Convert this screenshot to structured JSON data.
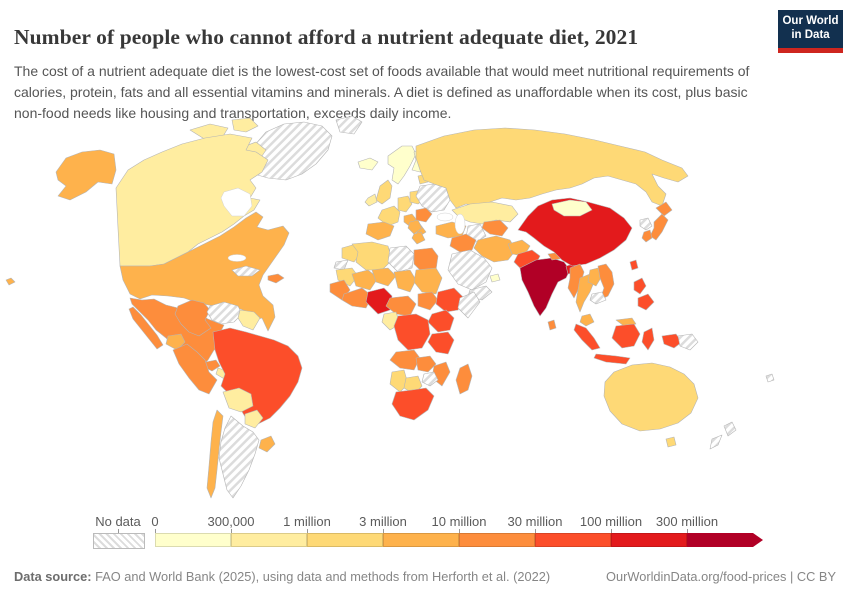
{
  "header": {
    "title": "Number of people who cannot afford a nutrient adequate diet, 2021",
    "subtitle": "The cost of a nutrient adequate diet is the lowest-cost set of foods available that would meet nutritional requirements of calories, protein, fats and all essential vitamins and minerals. A diet is defined as unaffordable when its cost, plus basic non-food needs like housing and transportation, exceeds daily income.",
    "logo": {
      "line1": "Our World",
      "line2": "in Data",
      "bg_color": "#12304F",
      "accent_color": "#CE261F"
    }
  },
  "legend": {
    "no_data_label": "No data",
    "stops": [
      {
        "label": "0",
        "color": "#FFFFCC"
      },
      {
        "label": "300,000",
        "color": "#FFEDA0"
      },
      {
        "label": "1 million",
        "color": "#FED976"
      },
      {
        "label": "3 million",
        "color": "#FEB24C"
      },
      {
        "label": "10 million",
        "color": "#FD8D3C"
      },
      {
        "label": "30 million",
        "color": "#FC4E2A"
      },
      {
        "label": "100 million",
        "color": "#E31A1C"
      },
      {
        "label": "300 million",
        "color": "#B10026"
      }
    ]
  },
  "footer": {
    "source_label": "Data source:",
    "source_text": " FAO and World Bank (2025), using data and methods from Herforth et al. (2022)",
    "link_text": "OurWorldinData.org/food-prices",
    "separator": " | ",
    "license_text": "CC BY"
  },
  "chart_data": {
    "type": "choropleth_map",
    "title": "Number of people who cannot afford a nutrient adequate diet",
    "year": "2021",
    "unit": "people",
    "bins": [
      "0–300,000",
      "300,000–1 million",
      "1–3 million",
      "3–10 million",
      "10–30 million",
      "30–100 million",
      "100–300 million",
      "300 million+",
      "No data"
    ],
    "no_data_style": "hatched",
    "regions": [
      {
        "id": "greenland",
        "name": "Greenland",
        "bin": "No data",
        "color": null
      },
      {
        "id": "svalbard",
        "name": "Svalbard",
        "bin": "No data",
        "color": null
      },
      {
        "id": "canada",
        "name": "Canada",
        "bin": "300,000–1 million",
        "color": "#FFEDA0"
      },
      {
        "id": "united-states",
        "name": "United States",
        "bin": "3–10 million",
        "color": "#FEB24C"
      },
      {
        "id": "hawaii",
        "name": "Hawaii (US)",
        "bin": "3–10 million",
        "color": "#FEB24C"
      },
      {
        "id": "mexico",
        "name": "Mexico",
        "bin": "10–30 million",
        "color": "#FD8D3C"
      },
      {
        "id": "guatemala",
        "name": "Guatemala",
        "bin": "10–30 million",
        "color": "#FD8D3C"
      },
      {
        "id": "central-america",
        "name": "Honduras & Nicaragua",
        "bin": "300,000–1 million",
        "color": "#FFEDA0"
      },
      {
        "id": "panama",
        "name": "Costa Rica & Panama",
        "bin": "10–30 million",
        "color": "#FD8D3C"
      },
      {
        "id": "cuba",
        "name": "Cuba",
        "bin": "No data",
        "color": null
      },
      {
        "id": "hispaniola",
        "name": "Haiti & Dominican Republic",
        "bin": "10–30 million",
        "color": "#FD8D3C"
      },
      {
        "id": "colombia",
        "name": "Colombia",
        "bin": "10–30 million",
        "color": "#FD8D3C"
      },
      {
        "id": "venezuela",
        "name": "Venezuela",
        "bin": "No data",
        "color": null
      },
      {
        "id": "guyanas",
        "name": "Guyana & Suriname",
        "bin": "300,000–1 million",
        "color": "#FFEDA0"
      },
      {
        "id": "ecuador",
        "name": "Ecuador",
        "bin": "3–10 million",
        "color": "#FEB24C"
      },
      {
        "id": "peru",
        "name": "Peru",
        "bin": "10–30 million",
        "color": "#FD8D3C"
      },
      {
        "id": "brazil",
        "name": "Brazil",
        "bin": "30–100 million",
        "color": "#FC4E2A"
      },
      {
        "id": "bolivia",
        "name": "Bolivia",
        "bin": "300,000–1 million",
        "color": "#FFEDA0"
      },
      {
        "id": "paraguay",
        "name": "Paraguay",
        "bin": "300,000–1 million",
        "color": "#FFEDA0"
      },
      {
        "id": "uruguay",
        "name": "Uruguay",
        "bin": "3–10 million",
        "color": "#FEB24C"
      },
      {
        "id": "chile",
        "name": "Chile",
        "bin": "3–10 million",
        "color": "#FEB24C"
      },
      {
        "id": "argentina",
        "name": "Argentina",
        "bin": "No data",
        "color": null
      },
      {
        "id": "iceland",
        "name": "Iceland",
        "bin": "0–300,000",
        "color": "#FFFFCC"
      },
      {
        "id": "uk",
        "name": "United Kingdom",
        "bin": "1–3 million",
        "color": "#FED976"
      },
      {
        "id": "ireland",
        "name": "Ireland",
        "bin": "300,000–1 million",
        "color": "#FFEDA0"
      },
      {
        "id": "norway-sweden",
        "name": "Norway & Sweden",
        "bin": "0–300,000",
        "color": "#FFFFCC"
      },
      {
        "id": "finland",
        "name": "Finland",
        "bin": "0–300,000",
        "color": "#FFFFCC"
      },
      {
        "id": "baltics",
        "name": "Baltic states",
        "bin": "1–3 million",
        "color": "#FED976"
      },
      {
        "id": "france",
        "name": "France",
        "bin": "1–3 million",
        "color": "#FED976"
      },
      {
        "id": "spain",
        "name": "Spain & Portugal",
        "bin": "3–10 million",
        "color": "#FEB24C"
      },
      {
        "id": "germany",
        "name": "Germany",
        "bin": "1–3 million",
        "color": "#FED976"
      },
      {
        "id": "italy",
        "name": "Italy",
        "bin": "3–10 million",
        "color": "#FEB24C"
      },
      {
        "id": "poland",
        "name": "Poland",
        "bin": "1–3 million",
        "color": "#FED976"
      },
      {
        "id": "ukraine",
        "name": "Ukraine & Belarus",
        "bin": "No data",
        "color": null
      },
      {
        "id": "romania",
        "name": "Romania",
        "bin": "10–30 million",
        "color": "#FD8D3C"
      },
      {
        "id": "balkans",
        "name": "Balkans",
        "bin": "3–10 million",
        "color": "#FEB24C"
      },
      {
        "id": "greece",
        "name": "Greece",
        "bin": "3–10 million",
        "color": "#FEB24C"
      },
      {
        "id": "turkey",
        "name": "Turkey",
        "bin": "3–10 million",
        "color": "#FEB24C"
      },
      {
        "id": "russia",
        "name": "Russia",
        "bin": "1–3 million",
        "color": "#FED976"
      },
      {
        "id": "kazakhstan",
        "name": "Kazakhstan",
        "bin": "300,000–1 million",
        "color": "#FFEDA0"
      },
      {
        "id": "uzbekistan",
        "name": "Uzbekistan",
        "bin": "10–30 million",
        "color": "#FD8D3C"
      },
      {
        "id": "turkmenistan",
        "name": "Turkmenistan",
        "bin": "No data",
        "color": null
      },
      {
        "id": "syria-iraq",
        "name": "Syria & Iraq",
        "bin": "10–30 million",
        "color": "#FD8D3C"
      },
      {
        "id": "iran",
        "name": "Iran",
        "bin": "3–10 million",
        "color": "#FEB24C"
      },
      {
        "id": "saudi-arabia",
        "name": "Saudi Arabia",
        "bin": "No data",
        "color": null
      },
      {
        "id": "yemen",
        "name": "Yemen",
        "bin": "No data",
        "color": null
      },
      {
        "id": "uae",
        "name": "United Arab Emirates",
        "bin": "0–300,000",
        "color": "#FFFFCC"
      },
      {
        "id": "afghanistan",
        "name": "Afghanistan",
        "bin": "3–10 million",
        "color": "#FEB24C"
      },
      {
        "id": "pakistan",
        "name": "Pakistan",
        "bin": "30–100 million",
        "color": "#FC4E2A"
      },
      {
        "id": "india",
        "name": "India",
        "bin": "300 million+",
        "color": "#B10026"
      },
      {
        "id": "nepal",
        "name": "Nepal",
        "bin": "10–30 million",
        "color": "#FD8D3C"
      },
      {
        "id": "bangladesh",
        "name": "Bangladesh",
        "bin": "100–300 million",
        "color": "#E31A1C"
      },
      {
        "id": "sri-lanka",
        "name": "Sri Lanka",
        "bin": "10–30 million",
        "color": "#FD8D3C"
      },
      {
        "id": "china",
        "name": "China",
        "bin": "100–300 million",
        "color": "#E31A1C"
      },
      {
        "id": "mongolia",
        "name": "Mongolia",
        "bin": "0–300,000",
        "color": "#FFFFCC"
      },
      {
        "id": "myanmar",
        "name": "Myanmar",
        "bin": "10–30 million",
        "color": "#FD8D3C"
      },
      {
        "id": "thailand",
        "name": "Thailand",
        "bin": "3–10 million",
        "color": "#FEB24C"
      },
      {
        "id": "laos",
        "name": "Laos",
        "bin": "3–10 million",
        "color": "#FEB24C"
      },
      {
        "id": "vietnam",
        "name": "Vietnam",
        "bin": "10–30 million",
        "color": "#FD8D3C"
      },
      {
        "id": "cambodia",
        "name": "Cambodia",
        "bin": "No data",
        "color": null
      },
      {
        "id": "malaysia",
        "name": "Malaysia",
        "bin": "3–10 million",
        "color": "#FEB24C"
      },
      {
        "id": "indonesia",
        "name": "Indonesia",
        "bin": "30–100 million",
        "color": "#FC4E2A"
      },
      {
        "id": "philippines",
        "name": "Philippines",
        "bin": "30–100 million",
        "color": "#FC4E2A"
      },
      {
        "id": "taiwan",
        "name": "Taiwan",
        "bin": "30–100 million",
        "color": "#FC4E2A"
      },
      {
        "id": "japan",
        "name": "Japan",
        "bin": "10–30 million",
        "color": "#FD8D3C"
      },
      {
        "id": "south-korea",
        "name": "South Korea",
        "bin": "10–30 million",
        "color": "#FD8D3C"
      },
      {
        "id": "north-korea",
        "name": "North Korea",
        "bin": "No data",
        "color": null
      },
      {
        "id": "papua-new-guinea",
        "name": "Papua New Guinea",
        "bin": "No data",
        "color": null
      },
      {
        "id": "australia",
        "name": "Australia",
        "bin": "1–3 million",
        "color": "#FED976"
      },
      {
        "id": "new-zealand",
        "name": "New Zealand",
        "bin": "No data",
        "color": null
      },
      {
        "id": "fiji",
        "name": "Fiji",
        "bin": "No data",
        "color": null
      },
      {
        "id": "morocco",
        "name": "Morocco",
        "bin": "1–3 million",
        "color": "#FED976"
      },
      {
        "id": "western-sahara",
        "name": "Western Sahara",
        "bin": "No data",
        "color": null
      },
      {
        "id": "algeria",
        "name": "Algeria",
        "bin": "1–3 million",
        "color": "#FED976"
      },
      {
        "id": "libya",
        "name": "Libya",
        "bin": "No data",
        "color": null
      },
      {
        "id": "egypt",
        "name": "Egypt",
        "bin": "10–30 million",
        "color": "#FD8D3C"
      },
      {
        "id": "mauritania",
        "name": "Mauritania",
        "bin": "1–3 million",
        "color": "#FED976"
      },
      {
        "id": "mali",
        "name": "Mali",
        "bin": "3–10 million",
        "color": "#FEB24C"
      },
      {
        "id": "niger",
        "name": "Niger",
        "bin": "3–10 million",
        "color": "#FEB24C"
      },
      {
        "id": "chad",
        "name": "Chad",
        "bin": "3–10 million",
        "color": "#FEB24C"
      },
      {
        "id": "sudan",
        "name": "Sudan",
        "bin": "3–10 million",
        "color": "#FEB24C"
      },
      {
        "id": "senegal-guinea",
        "name": "Senegal & Guinea",
        "bin": "10–30 million",
        "color": "#FD8D3C"
      },
      {
        "id": "west-africa-coast",
        "name": "Cote d'Ivoire, Ghana & Burkina Faso",
        "bin": "10–30 million",
        "color": "#FD8D3C"
      },
      {
        "id": "nigeria",
        "name": "Nigeria",
        "bin": "100–300 million",
        "color": "#E31A1C"
      },
      {
        "id": "cameroon",
        "name": "Cameroon & Central African Republic",
        "bin": "10–30 million",
        "color": "#FD8D3C"
      },
      {
        "id": "south-sudan",
        "name": "South Sudan",
        "bin": "10–30 million",
        "color": "#FD8D3C"
      },
      {
        "id": "ethiopia",
        "name": "Ethiopia",
        "bin": "30–100 million",
        "color": "#FC4E2A"
      },
      {
        "id": "somalia",
        "name": "Somalia",
        "bin": "No data",
        "color": null
      },
      {
        "id": "gabon-congo",
        "name": "Gabon & Congo",
        "bin": "300,000–1 million",
        "color": "#FFEDA0"
      },
      {
        "id": "drc",
        "name": "Democratic Republic of Congo",
        "bin": "30–100 million",
        "color": "#FC4E2A"
      },
      {
        "id": "kenya-uganda",
        "name": "Kenya & Uganda",
        "bin": "30–100 million",
        "color": "#FC4E2A"
      },
      {
        "id": "tanzania",
        "name": "Tanzania",
        "bin": "30–100 million",
        "color": "#FC4E2A"
      },
      {
        "id": "angola",
        "name": "Angola",
        "bin": "10–30 million",
        "color": "#FD8D3C"
      },
      {
        "id": "zambia",
        "name": "Zambia",
        "bin": "10–30 million",
        "color": "#FD8D3C"
      },
      {
        "id": "mozambique",
        "name": "Mozambique & Malawi",
        "bin": "10–30 million",
        "color": "#FD8D3C"
      },
      {
        "id": "zimbabwe",
        "name": "Zimbabwe",
        "bin": "No data",
        "color": null
      },
      {
        "id": "namibia",
        "name": "Namibia",
        "bin": "1–3 million",
        "color": "#FED976"
      },
      {
        "id": "botswana",
        "name": "Botswana",
        "bin": "1–3 million",
        "color": "#FED976"
      },
      {
        "id": "south-africa",
        "name": "South Africa",
        "bin": "30–100 million",
        "color": "#FC4E2A"
      },
      {
        "id": "madagascar",
        "name": "Madagascar",
        "bin": "10–30 million",
        "color": "#FD8D3C"
      }
    ]
  }
}
